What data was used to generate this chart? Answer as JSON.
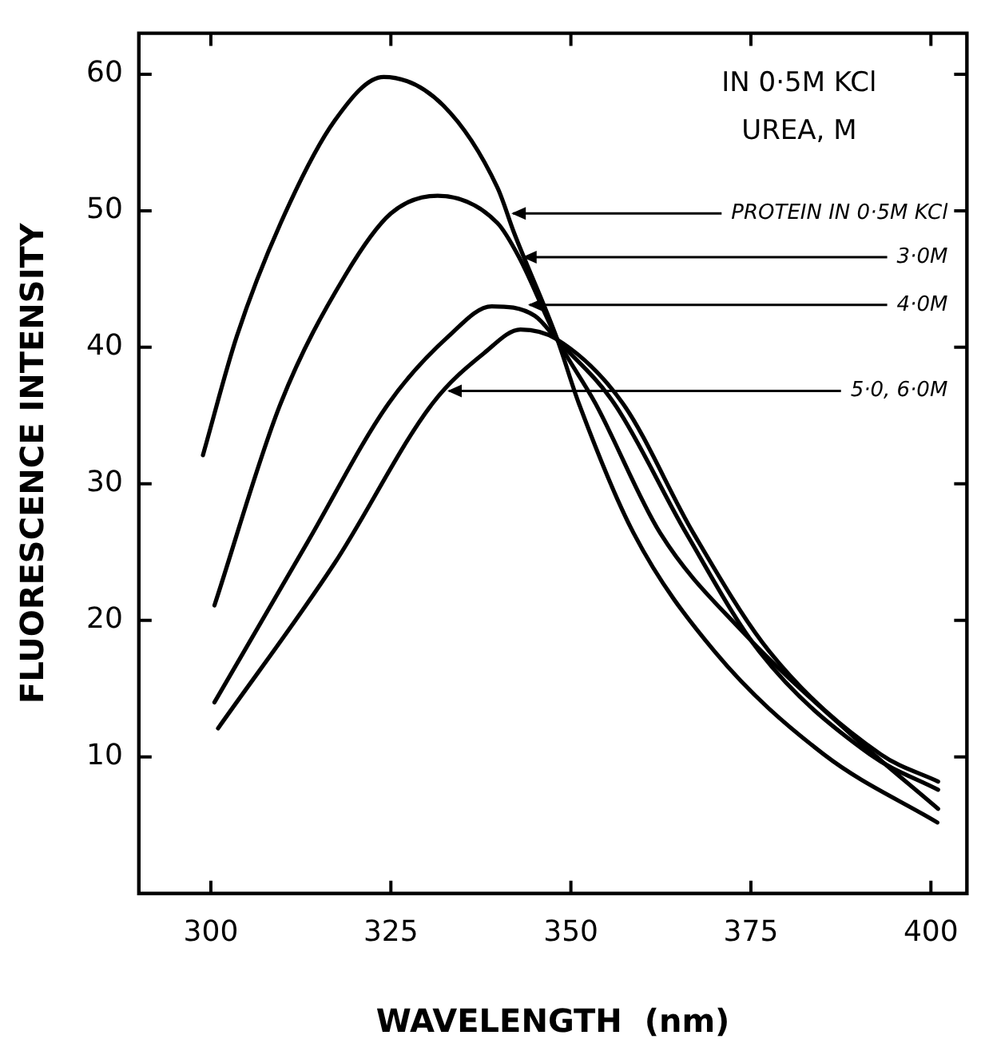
{
  "chart_data": {
    "type": "line",
    "xlabel": "WAVELENGTH  (nm)",
    "ylabel": "FLUORESCENCE INTENSITY",
    "xlim": [
      290,
      405
    ],
    "xticks": [
      300,
      325,
      350,
      375,
      400
    ],
    "ylim": [
      0,
      63
    ],
    "yticks": [
      10,
      20,
      30,
      40,
      50,
      60
    ],
    "grid": false,
    "legend": false,
    "marker": "none",
    "line_style": "solid",
    "series": [
      {
        "color": "#000000",
        "x": [
          298.9,
          303.6,
          309.7,
          317.2,
          324,
          332.3,
          339.8,
          342.1,
          348.1,
          351.1,
          358.7,
          370,
          385.1,
          400.9
        ],
        "values": [
          32.1,
          40.8,
          49.1,
          56.6,
          59.8,
          57.7,
          51.7,
          48.4,
          40.6,
          35.9,
          26.4,
          17.7,
          10.2,
          5.2
        ]
      },
      {
        "color": "#000000",
        "x": [
          300.5,
          309.7,
          318.7,
          325,
          331.5,
          339.8,
          342.8,
          348.1,
          353.4,
          362.4,
          373.8,
          388.8,
          401
        ],
        "values": [
          21.1,
          35.9,
          45.3,
          49.8,
          51.1,
          49.1,
          46.6,
          40.6,
          35.9,
          26.4,
          19.2,
          11.7,
          6.2
        ]
      },
      {
        "color": "#000000",
        "x": [
          300.5,
          313.4,
          324.7,
          333,
          339,
          345,
          348,
          356,
          366,
          376.2,
          391.5,
          401
        ],
        "values": [
          14,
          25.7,
          35.9,
          40.8,
          43,
          42.3,
          40.6,
          35.9,
          26.4,
          17.7,
          10.2,
          7.6
        ]
      },
      {
        "color": "#000000",
        "x": [
          301,
          317.2,
          330.8,
          338,
          343,
          348,
          357.2,
          367,
          377.6,
          393,
          401
        ],
        "values": [
          12.1,
          24.2,
          35.9,
          39.6,
          41.3,
          40.6,
          35.9,
          26.4,
          17.7,
          10.2,
          8.2
        ]
      }
    ],
    "annotations": [
      "IN 0·5M KCl",
      "UREA, M",
      {
        "text": "PROTEIN IN 0·5M KCl",
        "x": 341.3,
        "y": 49.8
      },
      {
        "text": "3·0M",
        "x": 342.8,
        "y": 46.6
      },
      {
        "text": "4·0M",
        "x": 343.6,
        "y": 43.1
      },
      {
        "text": "5·0, 6·0M",
        "x": 332.4,
        "y": 36.8
      }
    ]
  }
}
